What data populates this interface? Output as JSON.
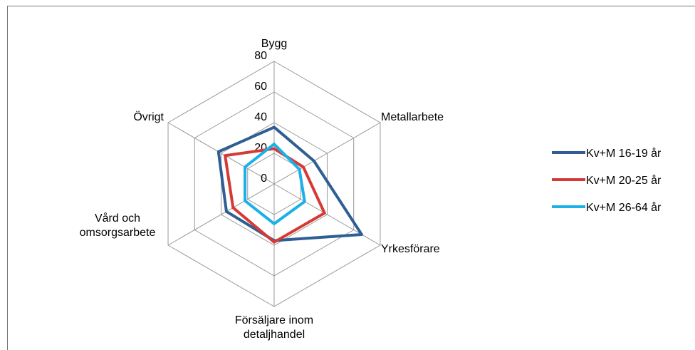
{
  "chart_data": {
    "type": "radar",
    "categories": [
      "Bygg",
      "Metallarbete",
      "Yrkesförare",
      "Försäljare inom detaljhandel",
      "Vård och omsorgsarbete",
      "Övrigt"
    ],
    "series": [
      {
        "name": "Kv+M 16-19 år",
        "color": "#2e5e93",
        "values": [
          37,
          30,
          66,
          37,
          36,
          42
        ]
      },
      {
        "name": "Kv+M 20-25 år",
        "color": "#d63a35",
        "values": [
          23,
          22,
          38,
          38,
          31,
          37
        ]
      },
      {
        "name": "Kv+M 26-64 år",
        "color": "#1ab0e8",
        "values": [
          26,
          19,
          23,
          26,
          22,
          22
        ]
      }
    ],
    "ylim": [
      0,
      80
    ],
    "yticks": [
      0,
      20,
      40,
      60,
      80
    ],
    "grid": true,
    "legend": "right"
  }
}
